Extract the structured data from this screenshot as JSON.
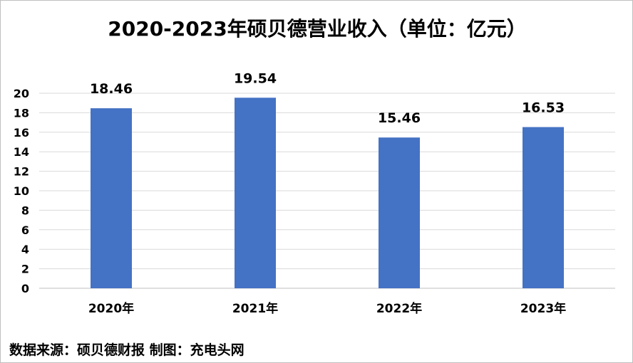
{
  "chart_data": {
    "type": "bar",
    "title": "2020-2023年硕贝德营业收入（单位：亿元）",
    "categories": [
      "2020年",
      "2021年",
      "2022年",
      "2023年"
    ],
    "values": [
      18.46,
      19.54,
      15.46,
      16.53
    ],
    "data_labels": [
      "18.46",
      "19.54",
      "15.46",
      "16.53"
    ],
    "y_ticks": [
      "0",
      "2",
      "4",
      "6",
      "8",
      "10",
      "12",
      "14",
      "16",
      "18",
      "20"
    ],
    "ylim": [
      0,
      20
    ],
    "grid": true,
    "legend": "none",
    "bar_color": "#4472c4"
  },
  "footer": {
    "source": "数据来源：硕贝德财报  制图：充电头网"
  }
}
